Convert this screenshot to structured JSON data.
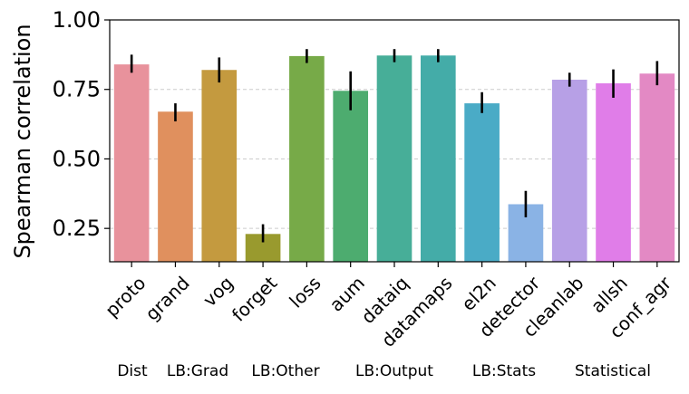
{
  "chart_data": {
    "type": "bar",
    "title": "",
    "xlabel": "",
    "ylabel": "Spearman correlation",
    "ylim": [
      0.13,
      1.0
    ],
    "yticks": [
      0.25,
      0.5,
      0.75,
      1.0
    ],
    "ytick_labels": [
      "0.25",
      "0.50",
      "0.75",
      "1.00"
    ],
    "grid": "horizontal dashed",
    "categories": [
      "proto",
      "grand",
      "vog",
      "forget",
      "loss",
      "aum",
      "dataiq",
      "datamaps",
      "el2n",
      "detector",
      "cleanlab",
      "allsh",
      "conf_agr"
    ],
    "values": [
      0.84,
      0.67,
      0.82,
      0.23,
      0.87,
      0.745,
      0.872,
      0.872,
      0.7,
      0.337,
      0.785,
      0.772,
      0.807
    ],
    "error_low": [
      0.81,
      0.635,
      0.775,
      0.2,
      0.845,
      0.675,
      0.848,
      0.848,
      0.665,
      0.29,
      0.76,
      0.72,
      0.765
    ],
    "error_high": [
      0.875,
      0.7,
      0.865,
      0.265,
      0.895,
      0.815,
      0.895,
      0.895,
      0.74,
      0.385,
      0.81,
      0.822,
      0.852
    ],
    "colors": [
      "#e8929c",
      "#e0905e",
      "#c49a3f",
      "#999a2e",
      "#77aa48",
      "#4dac6f",
      "#47ae98",
      "#44aca8",
      "#4aabc6",
      "#8ab3e5",
      "#b7a0e6",
      "#e07de8",
      "#e389c4"
    ],
    "group_labels": [
      "Dist",
      "LB:Grad",
      "LB:Other",
      "LB:Output",
      "LB:Stats",
      "Statistical"
    ]
  }
}
